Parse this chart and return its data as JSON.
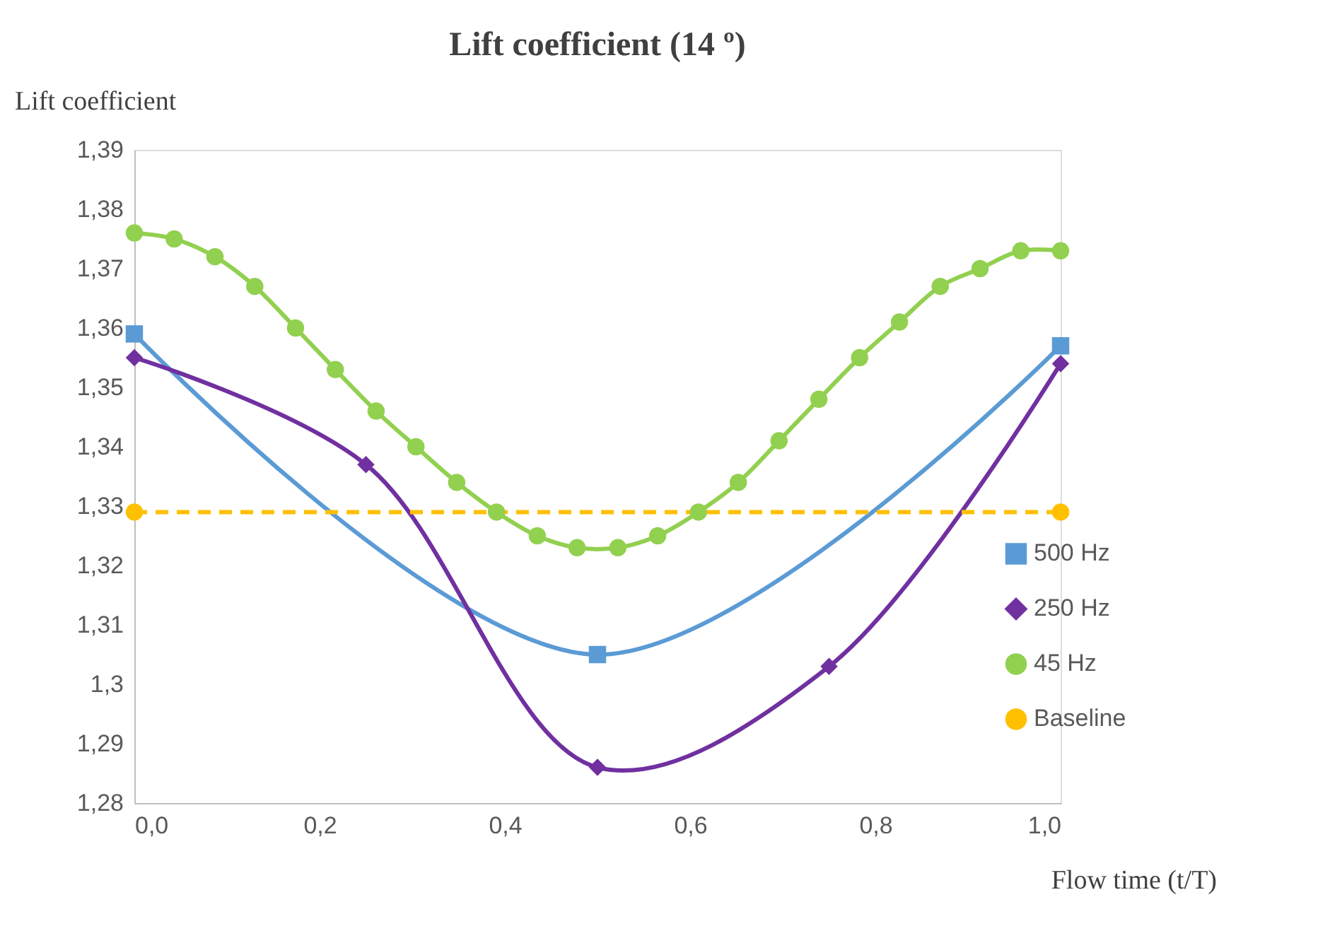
{
  "chart_data": {
    "type": "line",
    "title": "Lift coefficient (14 º)",
    "xlabel": "Flow time (t/T)",
    "ylabel": "Lift coefficient",
    "xlim": [
      0,
      1
    ],
    "xticks": [
      {
        "value": 0,
        "label": "0,0"
      },
      {
        "value": 0.2,
        "label": "0,2"
      },
      {
        "value": 0.4,
        "label": "0,4"
      },
      {
        "value": 0.6,
        "label": "0,6"
      },
      {
        "value": 0.8,
        "label": "0,8"
      },
      {
        "value": 1,
        "label": "1,0"
      }
    ],
    "ylim": [
      1.28,
      1.39
    ],
    "yticks": [
      {
        "value": 1.28,
        "label": "1,28"
      },
      {
        "value": 1.29,
        "label": "1,29"
      },
      {
        "value": 1.3,
        "label": "1,3"
      },
      {
        "value": 1.31,
        "label": "1,31"
      },
      {
        "value": 1.32,
        "label": "1,32"
      },
      {
        "value": 1.33,
        "label": "1,33"
      },
      {
        "value": 1.34,
        "label": "1,34"
      },
      {
        "value": 1.35,
        "label": "1,35"
      },
      {
        "value": 1.36,
        "label": "1,36"
      },
      {
        "value": 1.37,
        "label": "1,37"
      },
      {
        "value": 1.38,
        "label": "1,38"
      },
      {
        "value": 1.39,
        "label": "1,39"
      }
    ],
    "grid": false,
    "legend": "right",
    "series": [
      {
        "name": "500 Hz",
        "color": "#5b9bd5",
        "marker": "square",
        "line_style": "solid",
        "x": [
          0,
          0.5,
          1
        ],
        "values": [
          1.359,
          1.305,
          1.357
        ]
      },
      {
        "name": "250 Hz",
        "color": "#7030a0",
        "marker": "diamond",
        "line_style": "solid",
        "x": [
          0,
          0.25,
          0.5,
          0.75,
          1
        ],
        "values": [
          1.355,
          1.337,
          1.286,
          1.303,
          1.354
        ]
      },
      {
        "name": "45 Hz",
        "color": "#92d050",
        "marker": "circle",
        "line_style": "solid",
        "x": [
          0,
          0.043,
          0.087,
          0.13,
          0.174,
          0.217,
          0.261,
          0.304,
          0.348,
          0.391,
          0.435,
          0.478,
          0.522,
          0.565,
          0.609,
          0.652,
          0.696,
          0.739,
          0.783,
          0.826,
          0.87,
          0.913,
          0.957,
          1
        ],
        "values": [
          1.376,
          1.375,
          1.372,
          1.367,
          1.36,
          1.353,
          1.346,
          1.34,
          1.334,
          1.329,
          1.325,
          1.323,
          1.323,
          1.325,
          1.329,
          1.334,
          1.341,
          1.348,
          1.355,
          1.361,
          1.367,
          1.37,
          1.373,
          1.373
        ]
      },
      {
        "name": "Baseline",
        "color": "#ffc000",
        "marker": "circle",
        "line_style": "dashed",
        "x": [
          0,
          1
        ],
        "values": [
          1.329,
          1.329
        ]
      }
    ]
  }
}
